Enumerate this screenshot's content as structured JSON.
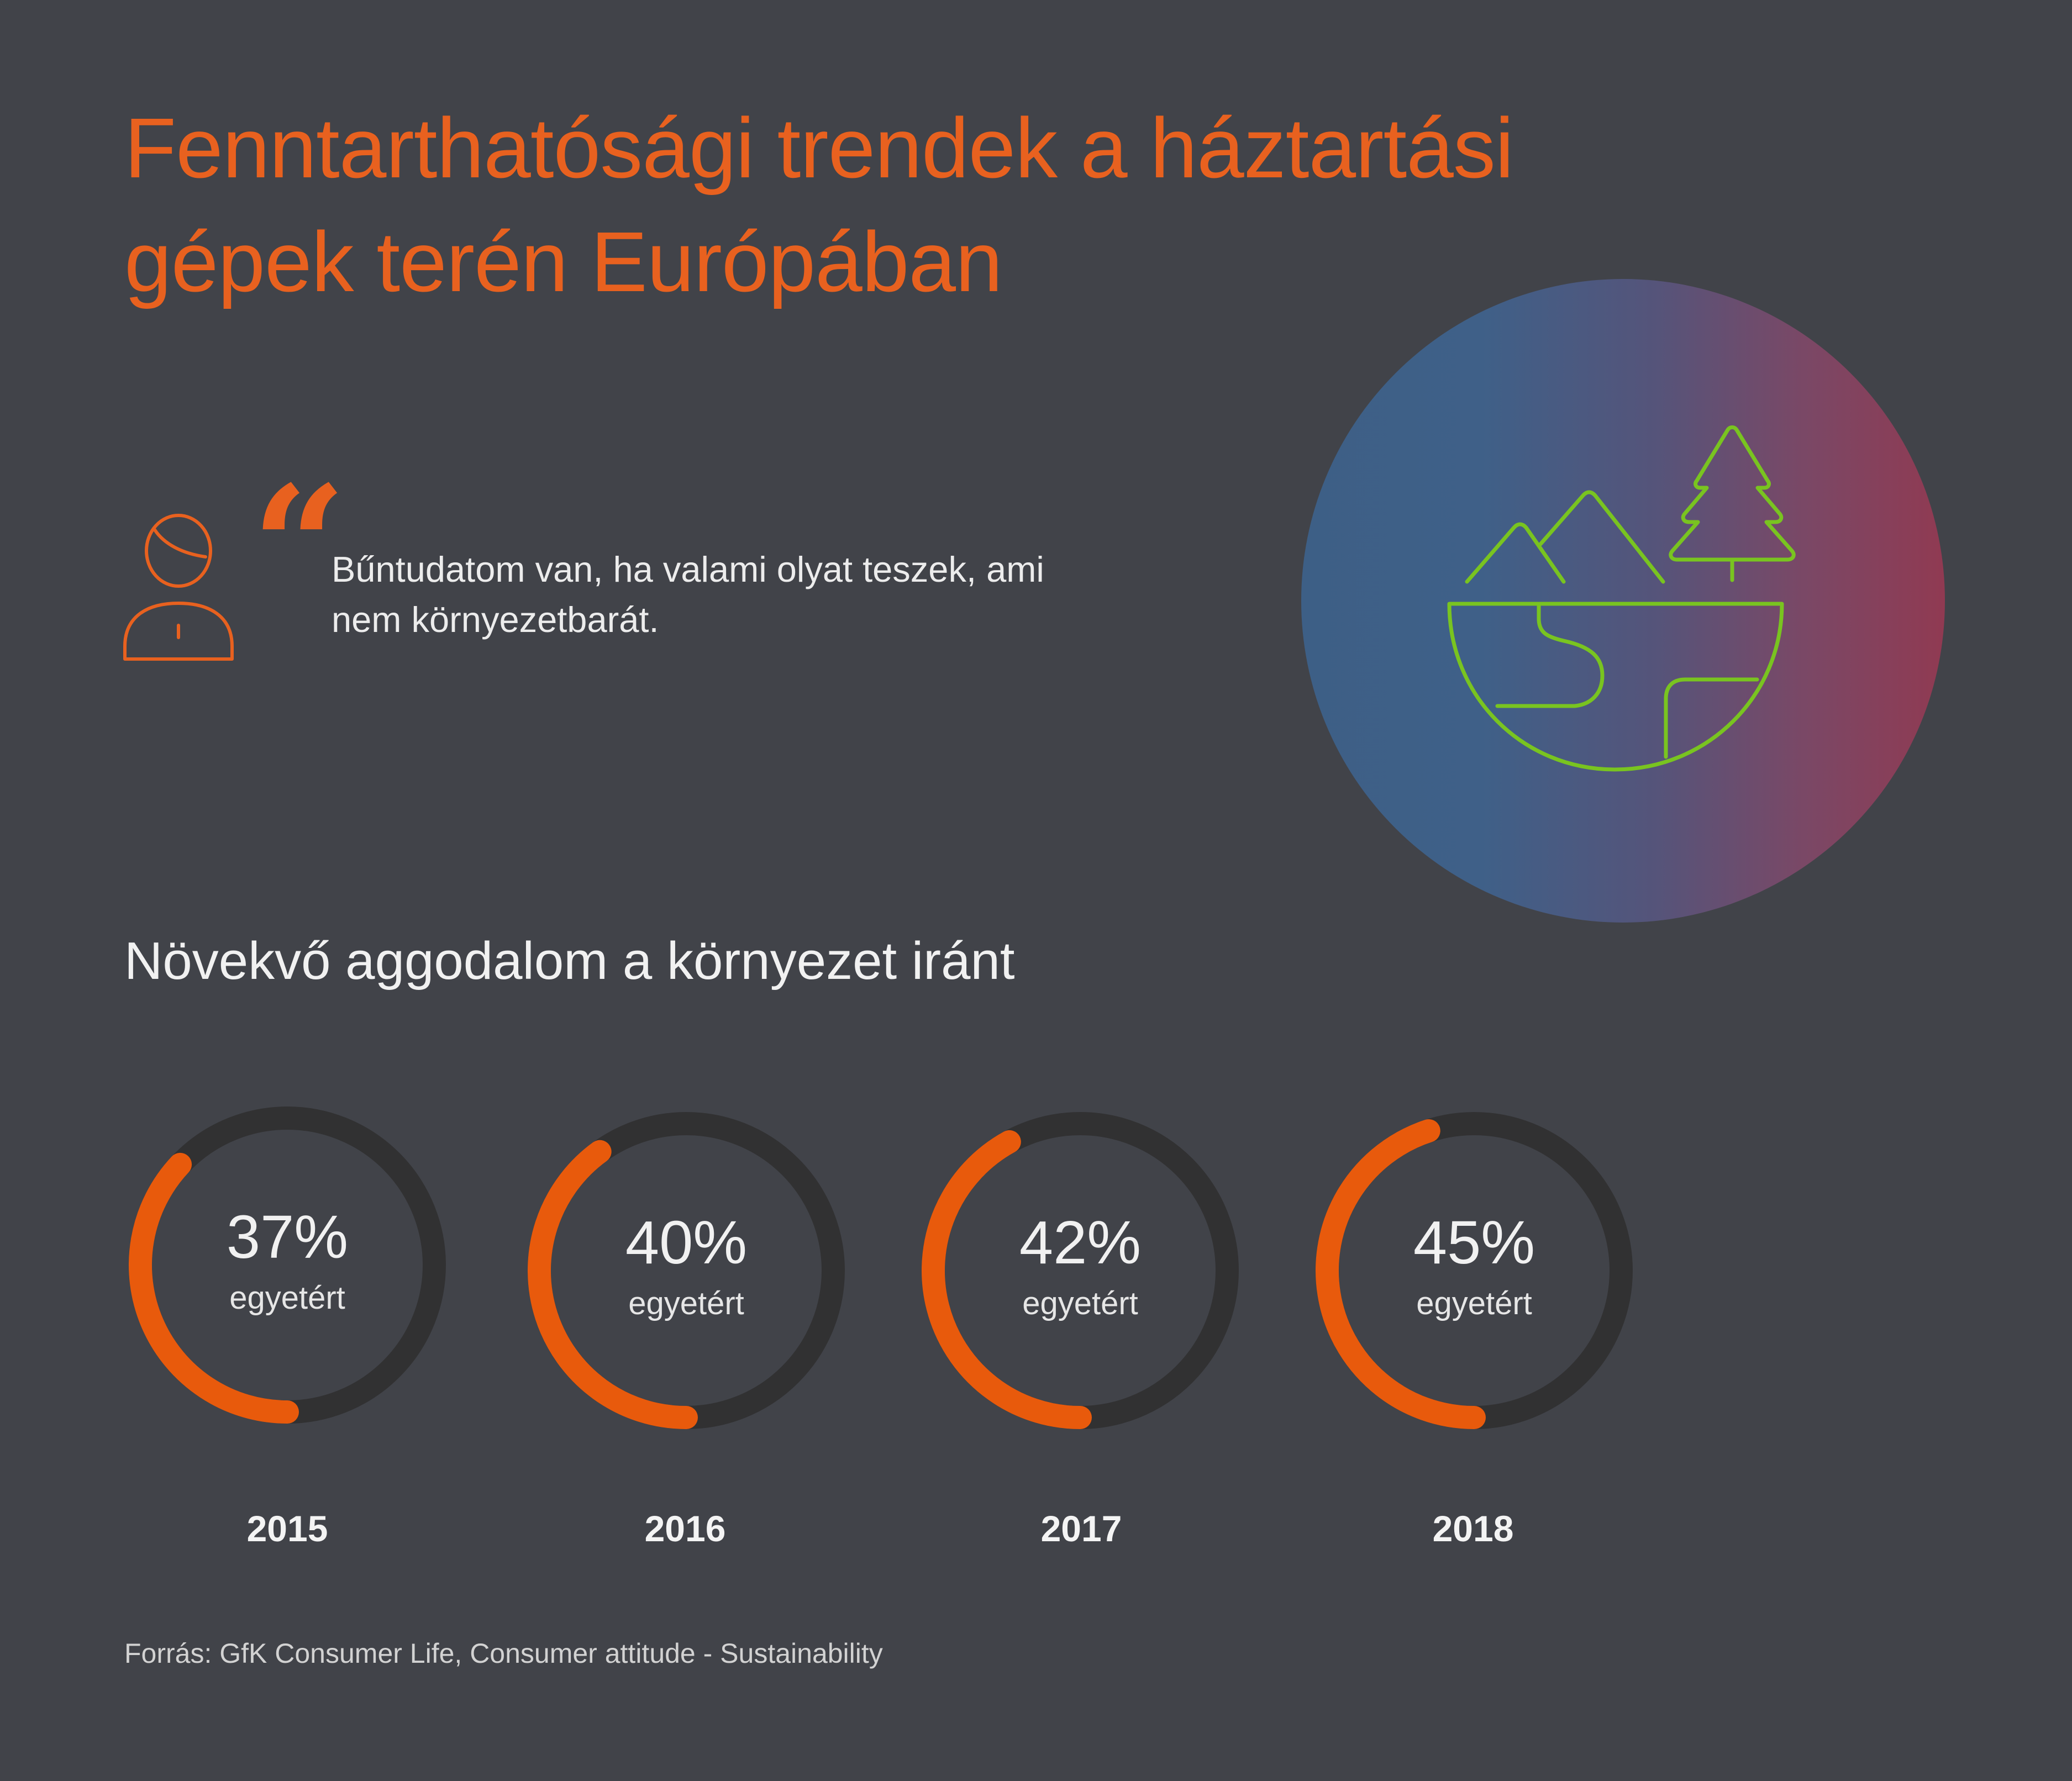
{
  "title": {
    "line1": "Fenntarthatósági trendek a háztartási",
    "line2": "gépek terén Európában"
  },
  "quote": {
    "mark": "“",
    "line1": "Bűntudatom van, ha valami olyat teszek, ami",
    "line2": "nem környezetbarát.",
    "avatar_icon": "person-icon"
  },
  "illustration": {
    "icon": "globe-mountains-tree-icon",
    "gradient_colors": [
      "#3d5f86",
      "#903a52"
    ],
    "line_color": "#79c420"
  },
  "subtitle": "Növekvő aggodalom a környezet iránt",
  "chart_data": {
    "type": "donut",
    "categories": [
      "2015",
      "2016",
      "2017",
      "2018"
    ],
    "values": [
      37,
      40,
      42,
      45
    ],
    "value_labels": [
      "37%",
      "40%",
      "42%",
      "45%"
    ],
    "unit": "%",
    "sub_label": "egyetért",
    "range": [
      0,
      100
    ],
    "colors": {
      "filled": "#e85a0c",
      "track": "#313132"
    }
  },
  "source": "Forrás: GfK Consumer Life, Consumer attitude - Sustainability"
}
